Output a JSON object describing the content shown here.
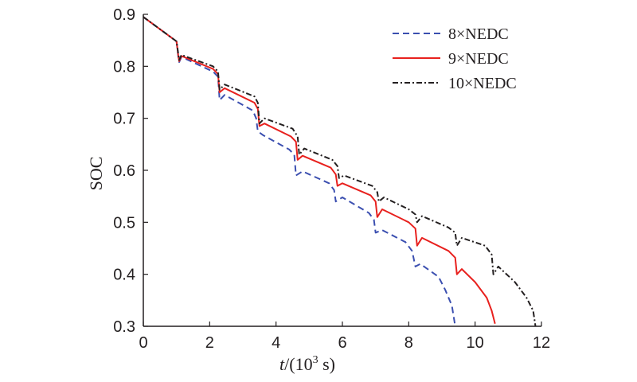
{
  "chart_data": {
    "type": "line",
    "xlabel_italic": "t",
    "xlabel_rest": "/(10",
    "xlabel_sup": "3",
    "xlabel_end": " s)",
    "ylabel": "SOC",
    "xlim": [
      0,
      12
    ],
    "ylim": [
      0.3,
      0.9
    ],
    "xticks": [
      "0",
      "2",
      "4",
      "6",
      "8",
      "10",
      "12"
    ],
    "yticks": [
      "0.3",
      "0.4",
      "0.5",
      "0.6",
      "0.7",
      "0.8",
      "0.9"
    ],
    "grid": false,
    "legend_position": "top-right",
    "series": [
      {
        "name": "8×NEDC",
        "color": "#3b4fb0",
        "dash": "dashed",
        "points": [
          [
            0,
            0.895
          ],
          [
            1.0,
            0.848
          ],
          [
            1.05,
            0.82
          ],
          [
            1.08,
            0.808
          ],
          [
            1.15,
            0.818
          ],
          [
            2.1,
            0.79
          ],
          [
            2.25,
            0.78
          ],
          [
            2.3,
            0.735
          ],
          [
            2.45,
            0.745
          ],
          [
            3.3,
            0.715
          ],
          [
            3.4,
            0.7
          ],
          [
            3.45,
            0.675
          ],
          [
            3.6,
            0.668
          ],
          [
            4.4,
            0.64
          ],
          [
            4.55,
            0.63
          ],
          [
            4.6,
            0.59
          ],
          [
            4.8,
            0.598
          ],
          [
            5.6,
            0.575
          ],
          [
            5.75,
            0.562
          ],
          [
            5.8,
            0.54
          ],
          [
            6.0,
            0.548
          ],
          [
            6.8,
            0.518
          ],
          [
            6.95,
            0.505
          ],
          [
            7.0,
            0.48
          ],
          [
            7.2,
            0.485
          ],
          [
            7.9,
            0.462
          ],
          [
            8.1,
            0.445
          ],
          [
            8.2,
            0.415
          ],
          [
            8.35,
            0.42
          ],
          [
            8.9,
            0.395
          ],
          [
            9.1,
            0.37
          ],
          [
            9.3,
            0.34
          ],
          [
            9.4,
            0.3
          ]
        ]
      },
      {
        "name": "9×NEDC",
        "color": "#e8211e",
        "dash": "solid",
        "points": [
          [
            0,
            0.895
          ],
          [
            1.0,
            0.848
          ],
          [
            1.05,
            0.822
          ],
          [
            1.08,
            0.81
          ],
          [
            1.15,
            0.82
          ],
          [
            2.1,
            0.795
          ],
          [
            2.25,
            0.785
          ],
          [
            2.3,
            0.75
          ],
          [
            2.45,
            0.758
          ],
          [
            3.35,
            0.73
          ],
          [
            3.45,
            0.718
          ],
          [
            3.5,
            0.685
          ],
          [
            3.65,
            0.69
          ],
          [
            4.45,
            0.665
          ],
          [
            4.6,
            0.655
          ],
          [
            4.65,
            0.62
          ],
          [
            4.8,
            0.628
          ],
          [
            5.65,
            0.605
          ],
          [
            5.8,
            0.592
          ],
          [
            5.85,
            0.57
          ],
          [
            6.0,
            0.575
          ],
          [
            6.85,
            0.552
          ],
          [
            7.0,
            0.54
          ],
          [
            7.05,
            0.51
          ],
          [
            7.2,
            0.525
          ],
          [
            8.0,
            0.5
          ],
          [
            8.2,
            0.488
          ],
          [
            8.25,
            0.455
          ],
          [
            8.4,
            0.47
          ],
          [
            9.2,
            0.445
          ],
          [
            9.4,
            0.432
          ],
          [
            9.45,
            0.4
          ],
          [
            9.6,
            0.41
          ],
          [
            10.0,
            0.385
          ],
          [
            10.35,
            0.355
          ],
          [
            10.5,
            0.33
          ],
          [
            10.6,
            0.305
          ]
        ]
      },
      {
        "name": "10×NEDC",
        "color": "#231f20",
        "dash": "dashdot",
        "points": [
          [
            0,
            0.895
          ],
          [
            1.0,
            0.848
          ],
          [
            1.05,
            0.825
          ],
          [
            1.08,
            0.812
          ],
          [
            1.15,
            0.822
          ],
          [
            2.1,
            0.8
          ],
          [
            2.25,
            0.79
          ],
          [
            2.3,
            0.755
          ],
          [
            2.45,
            0.765
          ],
          [
            3.35,
            0.742
          ],
          [
            3.45,
            0.73
          ],
          [
            3.5,
            0.69
          ],
          [
            3.65,
            0.7
          ],
          [
            4.5,
            0.68
          ],
          [
            4.65,
            0.665
          ],
          [
            4.7,
            0.63
          ],
          [
            4.85,
            0.642
          ],
          [
            5.7,
            0.62
          ],
          [
            5.85,
            0.608
          ],
          [
            5.9,
            0.585
          ],
          [
            6.05,
            0.59
          ],
          [
            6.9,
            0.57
          ],
          [
            7.05,
            0.558
          ],
          [
            7.1,
            0.54
          ],
          [
            7.25,
            0.548
          ],
          [
            8.0,
            0.525
          ],
          [
            8.2,
            0.515
          ],
          [
            8.25,
            0.5
          ],
          [
            8.4,
            0.512
          ],
          [
            9.2,
            0.49
          ],
          [
            9.4,
            0.48
          ],
          [
            9.45,
            0.455
          ],
          [
            9.6,
            0.47
          ],
          [
            10.3,
            0.455
          ],
          [
            10.5,
            0.438
          ],
          [
            10.55,
            0.4
          ],
          [
            10.7,
            0.415
          ],
          [
            11.2,
            0.385
          ],
          [
            11.55,
            0.355
          ],
          [
            11.75,
            0.33
          ],
          [
            11.82,
            0.3
          ]
        ]
      }
    ]
  }
}
